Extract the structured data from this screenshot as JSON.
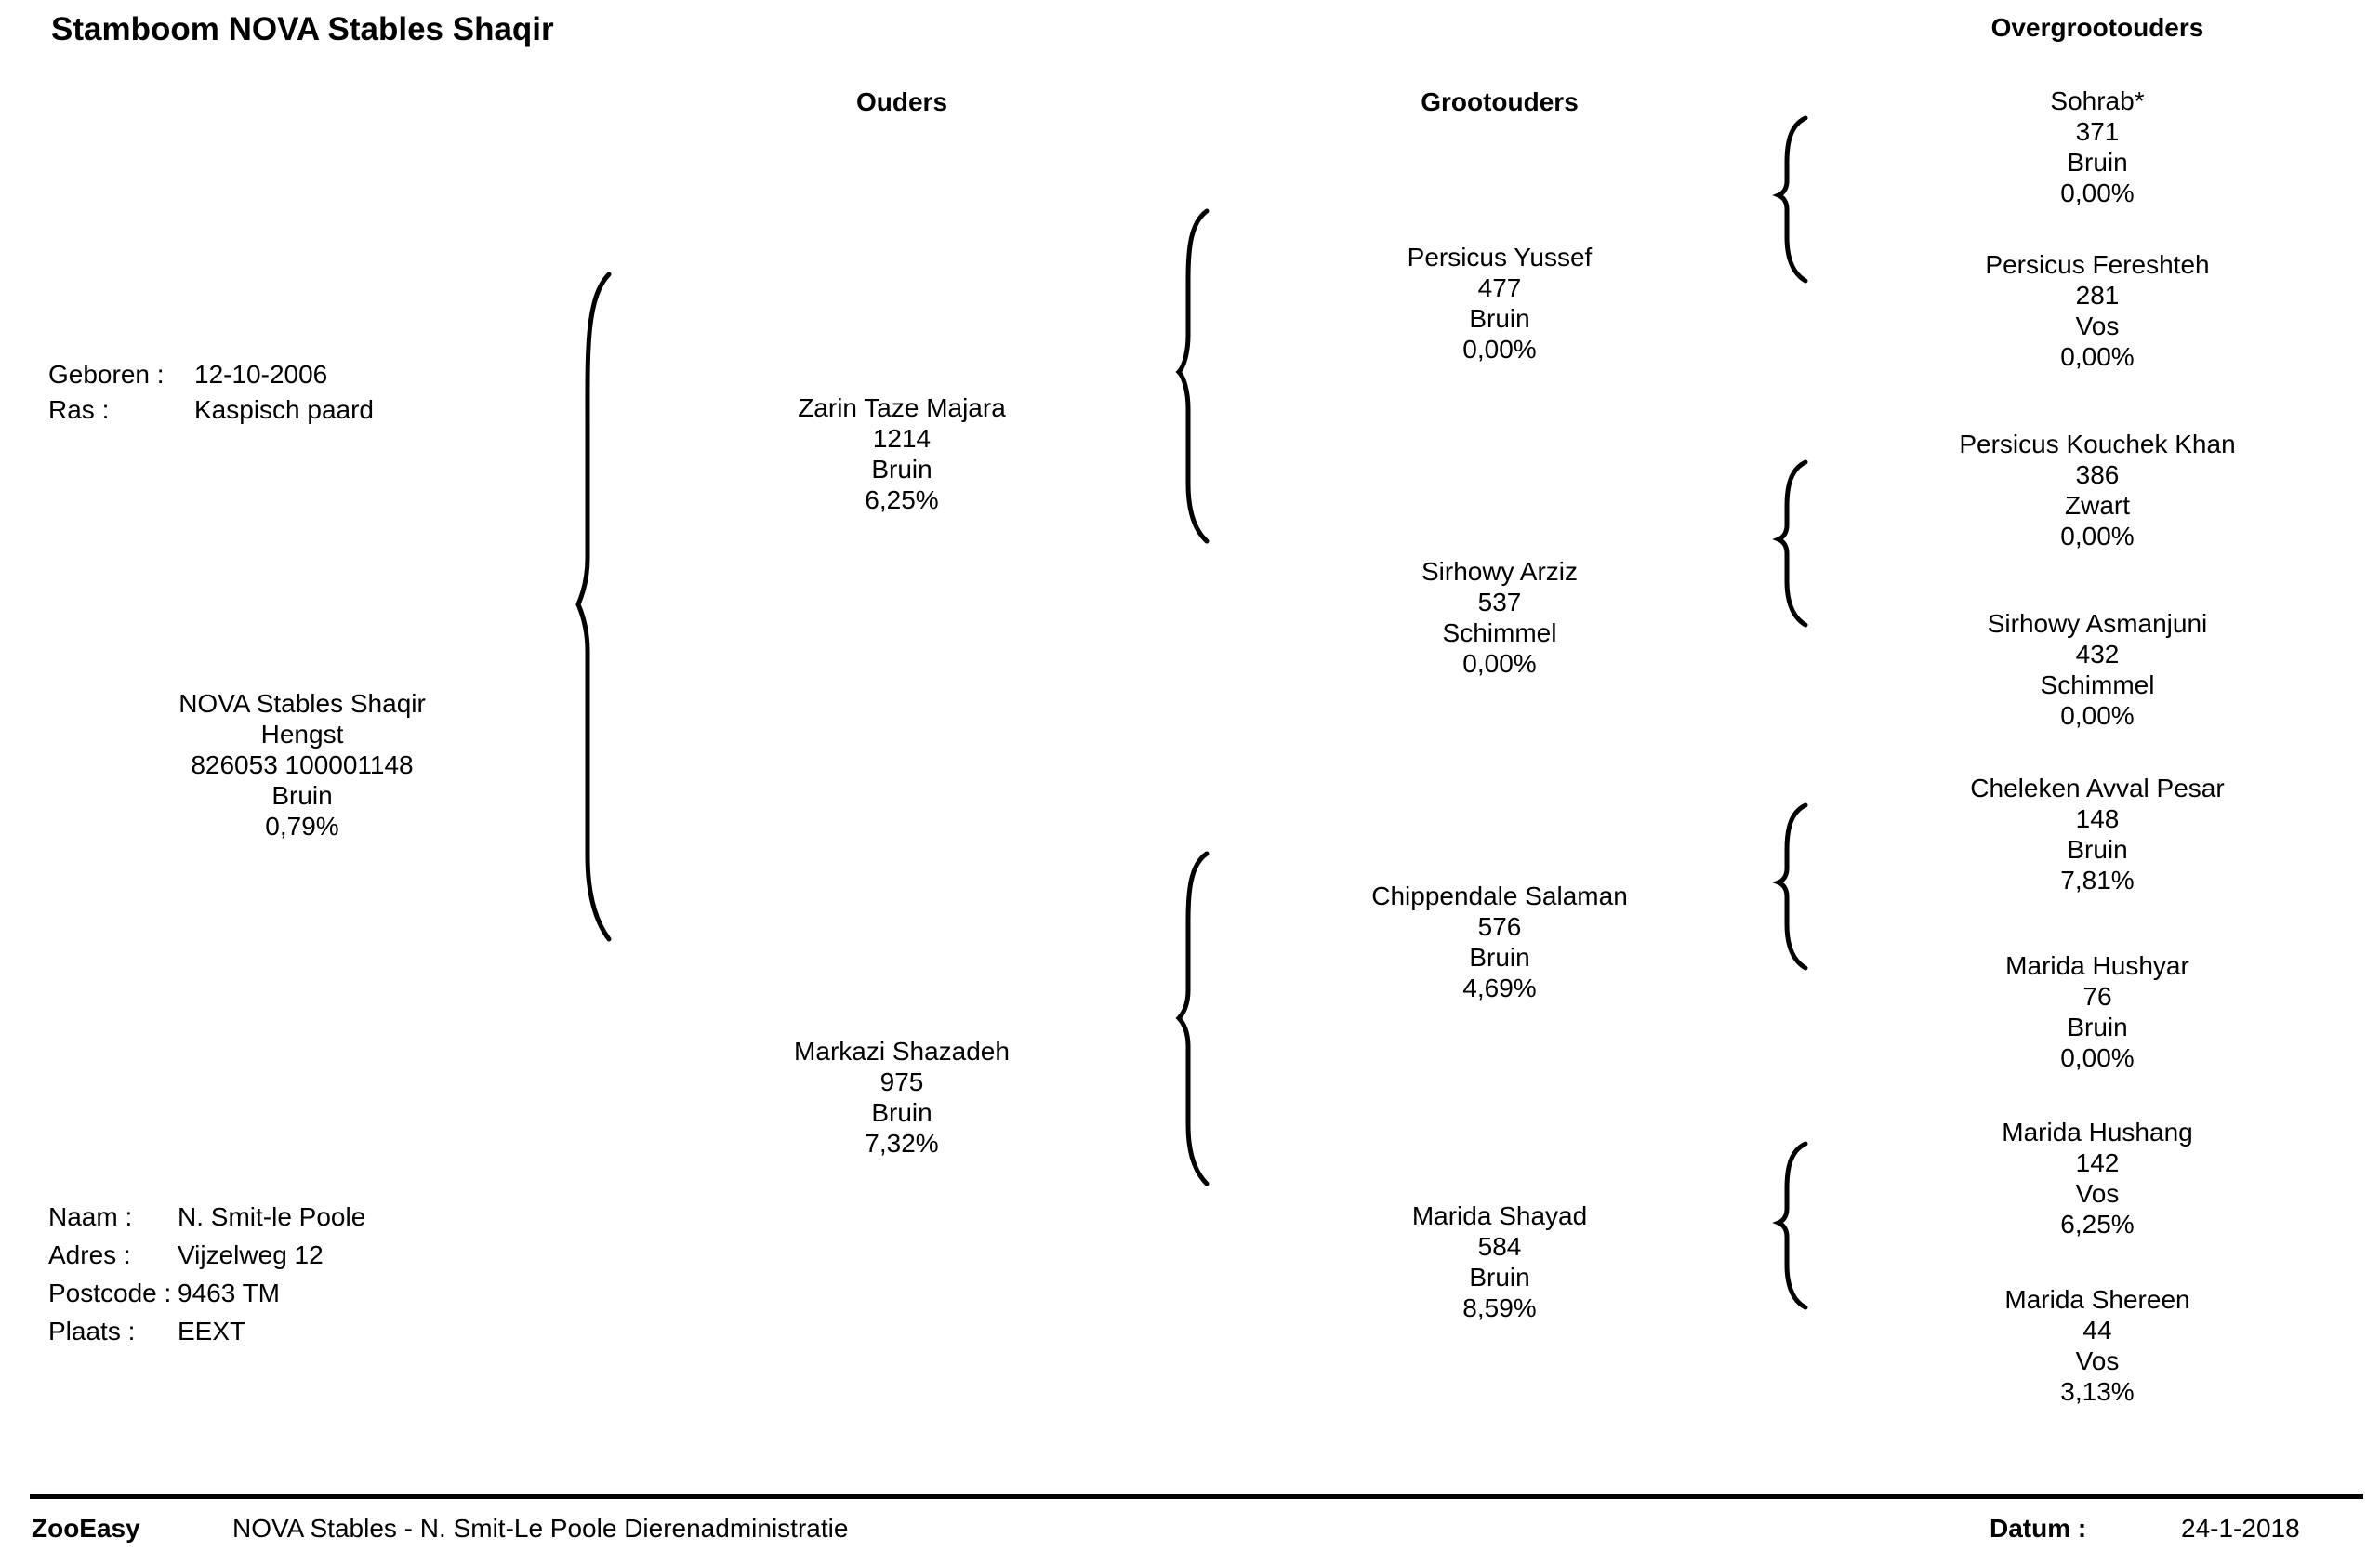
{
  "title": "Stamboom NOVA Stables Shaqir",
  "columns": {
    "parents": "Ouders",
    "grandparents": "Grootouders",
    "greatgrandparents": "Overgrootouders"
  },
  "info": {
    "born_label": "Geboren :",
    "born_value": "12-10-2006",
    "breed_label": "Ras :",
    "breed_value": "Kaspisch paard"
  },
  "subject": {
    "name": "NOVA Stables Shaqir",
    "sex": "Hengst",
    "id": "826053 100001148",
    "color": "Bruin",
    "inbreeding": "0,79%"
  },
  "owner": {
    "name_label": "Naam :",
    "name_value": "N.  Smit-le Poole",
    "address_label": "Adres :",
    "address_value": "Vijzelweg 12",
    "postcode_label": "Postcode :",
    "postcode_value": "9463 TM",
    "city_label": "Plaats :",
    "city_value": "EEXT"
  },
  "parents": [
    {
      "name": "Zarin Taze Majara",
      "number": "1214",
      "color": "Bruin",
      "pct": "6,25%"
    },
    {
      "name": "Markazi Shazadeh",
      "number": "975",
      "color": "Bruin",
      "pct": "7,32%"
    }
  ],
  "grandparents": [
    {
      "name": "Persicus Yussef",
      "number": "477",
      "color": "Bruin",
      "pct": "0,00%"
    },
    {
      "name": "Sirhowy Arziz",
      "number": "537",
      "color": "Schimmel",
      "pct": "0,00%"
    },
    {
      "name": "Chippendale Salaman",
      "number": "576",
      "color": "Bruin",
      "pct": "4,69%"
    },
    {
      "name": "Marida Shayad",
      "number": "584",
      "color": "Bruin",
      "pct": "8,59%"
    }
  ],
  "greatgrandparents": [
    {
      "name": "Sohrab*",
      "number": "371",
      "color": "Bruin",
      "pct": "0,00%"
    },
    {
      "name": "Persicus Fereshteh",
      "number": "281",
      "color": "Vos",
      "pct": "0,00%"
    },
    {
      "name": "Persicus Kouchek Khan",
      "number": "386",
      "color": "Zwart",
      "pct": "0,00%"
    },
    {
      "name": "Sirhowy Asmanjuni",
      "number": "432",
      "color": "Schimmel",
      "pct": "0,00%"
    },
    {
      "name": "Cheleken Avval Pesar",
      "number": "148",
      "color": "Bruin",
      "pct": "7,81%"
    },
    {
      "name": "Marida Hushyar",
      "number": "76",
      "color": "Bruin",
      "pct": "0,00%"
    },
    {
      "name": "Marida Hushang",
      "number": "142",
      "color": "Vos",
      "pct": "6,25%"
    },
    {
      "name": "Marida Shereen",
      "number": "44",
      "color": "Vos",
      "pct": "3,13%"
    }
  ],
  "footer": {
    "app": "ZooEasy",
    "org": "NOVA Stables - N. Smit-Le Poole Dierenadministratie",
    "date_label": "Datum :",
    "date_value": "24-1-2018"
  }
}
